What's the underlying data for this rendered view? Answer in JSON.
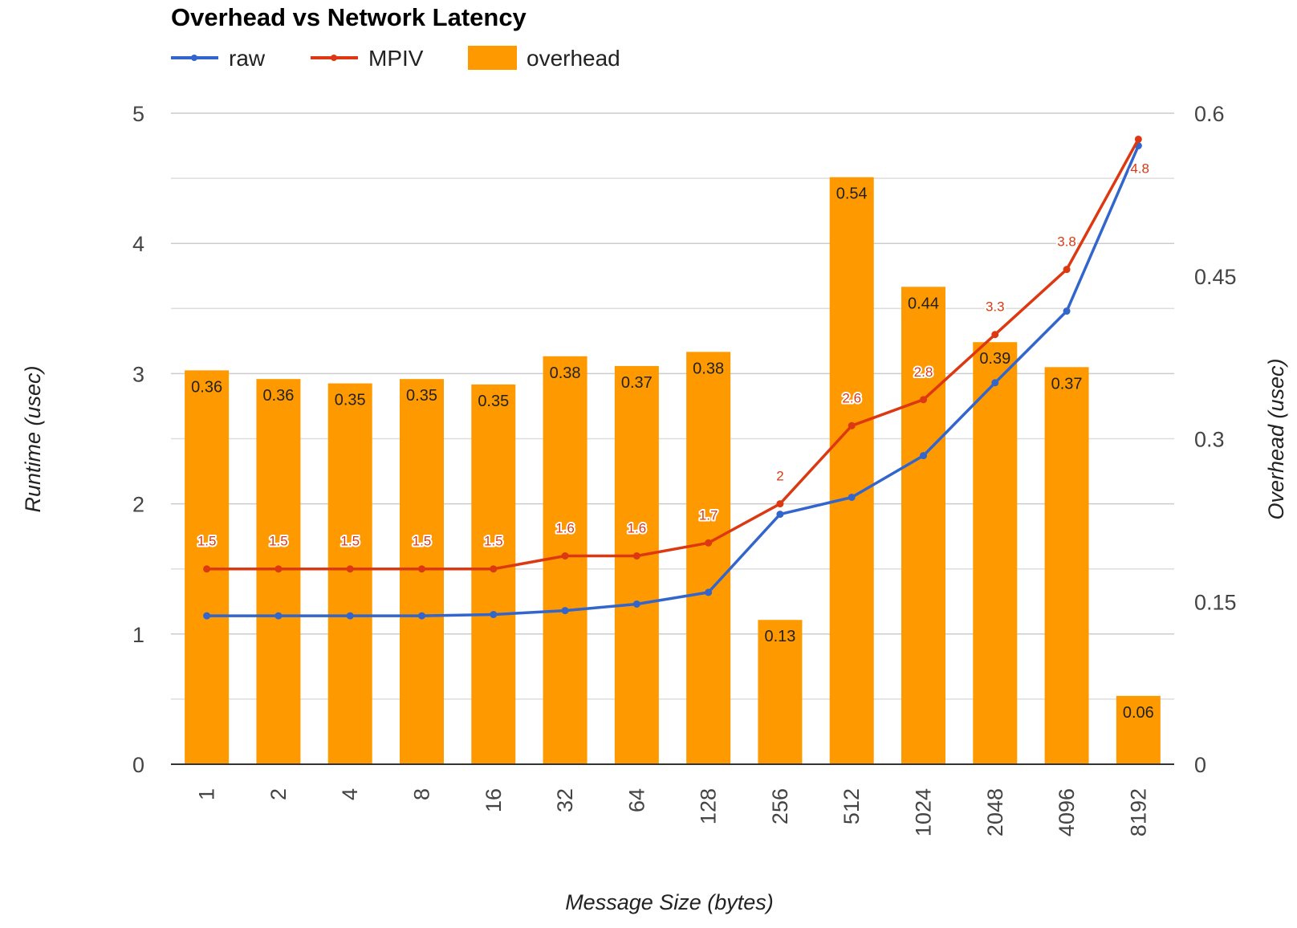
{
  "chart_data": {
    "type": "bar",
    "title": "Overhead vs Network Latency",
    "xlabel": "Message Size (bytes)",
    "ylabel": "Runtime (usec)",
    "y2label": "Overhead (usec)",
    "categories": [
      "1",
      "2",
      "4",
      "8",
      "16",
      "32",
      "64",
      "128",
      "256",
      "512",
      "1024",
      "2048",
      "4096",
      "8192"
    ],
    "ylim": [
      0,
      5
    ],
    "yticks": [
      "0",
      "1",
      "2",
      "3",
      "4",
      "5"
    ],
    "y2lim": [
      0,
      0.6
    ],
    "y2ticks": [
      "0",
      "0.15",
      "0.3",
      "0.45",
      "0.6"
    ],
    "grid": true,
    "legend_position": "top-left",
    "series": [
      {
        "name": "raw",
        "type": "line",
        "axis": "left",
        "color": "#3366cc",
        "values": [
          1.14,
          1.14,
          1.14,
          1.14,
          1.15,
          1.18,
          1.23,
          1.32,
          1.92,
          2.05,
          2.37,
          2.93,
          3.48,
          4.75
        ]
      },
      {
        "name": "MPIV",
        "type": "line",
        "axis": "left",
        "color": "#dc3912",
        "values": [
          1.5,
          1.5,
          1.5,
          1.5,
          1.5,
          1.6,
          1.6,
          1.7,
          2,
          2.6,
          2.8,
          3.3,
          3.8,
          4.8
        ],
        "labels": [
          "1.5",
          "1.5",
          "1.5",
          "1.5",
          "1.5",
          "1.6",
          "1.6",
          "1.7",
          "2",
          "2.6",
          "2.8",
          "3.3",
          "3.8",
          "4.8"
        ]
      },
      {
        "name": "overhead",
        "type": "bar",
        "axis": "right",
        "color": "#ff9900",
        "values": [
          0.363,
          0.355,
          0.351,
          0.355,
          0.35,
          0.376,
          0.367,
          0.38,
          0.133,
          0.541,
          0.44,
          0.389,
          0.366,
          0.063
        ],
        "labels": [
          "0.36",
          "0.36",
          "0.35",
          "0.35",
          "0.35",
          "0.38",
          "0.37",
          "0.38",
          "0.13",
          "0.54",
          "0.44",
          "0.39",
          "0.37",
          "0.06"
        ]
      }
    ]
  }
}
